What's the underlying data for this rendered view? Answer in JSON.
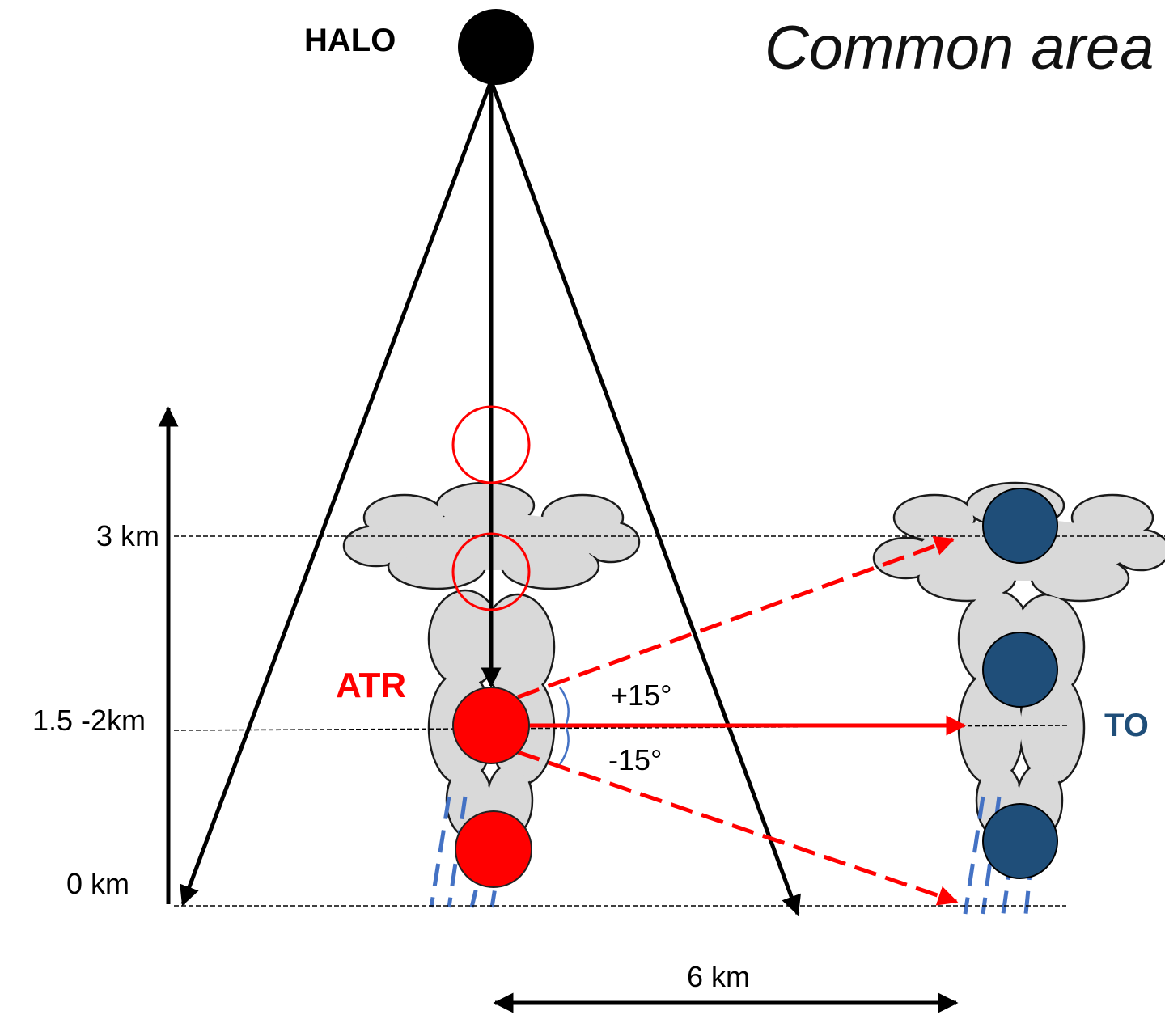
{
  "header": {
    "title": "Common area"
  },
  "aircraft": {
    "halo": "HALO",
    "atr": "ATR",
    "to": "TO"
  },
  "angles": {
    "up": "+15°",
    "down": "-15°"
  },
  "altitudes": {
    "top": "3 km",
    "mid": "1.5 -2km",
    "ground": "0 km"
  },
  "distance": "6 km"
}
